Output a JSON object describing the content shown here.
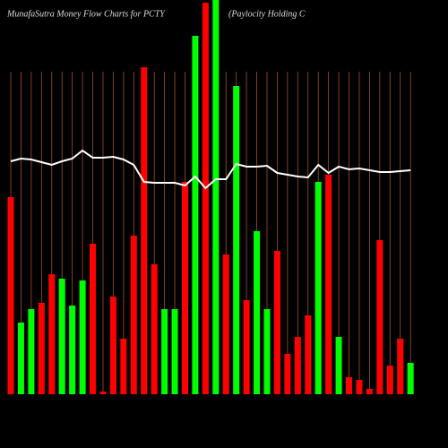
{
  "chart_data": {
    "type": "bar",
    "title": "MunafaSutra  Money Flow  Charts for PCTY",
    "subtitle": "(Paylocity Holding C",
    "values": [
      220,
      80,
      95,
      102,
      134,
      129,
      99,
      127,
      168,
      3,
      109,
      62,
      177,
      365,
      145,
      95,
      95,
      237,
      400,
      437,
      440,
      156,
      344,
      105,
      182,
      95,
      160,
      45,
      64,
      88,
      237,
      245,
      64,
      19,
      16,
      6,
      172,
      32,
      62,
      35
    ],
    "colors": [
      "#f00",
      "#0f0",
      "#0f0",
      "#f00",
      "#f00",
      "#0f0",
      "#0f0",
      "#0f0",
      "#f00",
      "#f00",
      "#f00",
      "#f00",
      "#f00",
      "#f00",
      "#f00",
      "#0f0",
      "#0f0",
      "#f00",
      "#0f0",
      "#f00",
      "#0f0",
      "#f00",
      "#0f0",
      "#f00",
      "#0f0",
      "#0f0",
      "#f00",
      "#f00",
      "#f00",
      "#f00",
      "#0f0",
      "#f00",
      "#0f0",
      "#f00",
      "#f00",
      "#f00",
      "#f00",
      "#f00",
      "#f00",
      "#0f0"
    ],
    "line_values": [
      260,
      263,
      262,
      259,
      256,
      260,
      263,
      272,
      264,
      264,
      265,
      262,
      256,
      237,
      236,
      236,
      236,
      233,
      243,
      230,
      240,
      240,
      257,
      254,
      254,
      255,
      247,
      245,
      243,
      242,
      256,
      247,
      254,
      251,
      252,
      250,
      248,
      248,
      249,
      250
    ],
    "line_color": "#fff",
    "ylim": [
      0,
      440
    ]
  }
}
